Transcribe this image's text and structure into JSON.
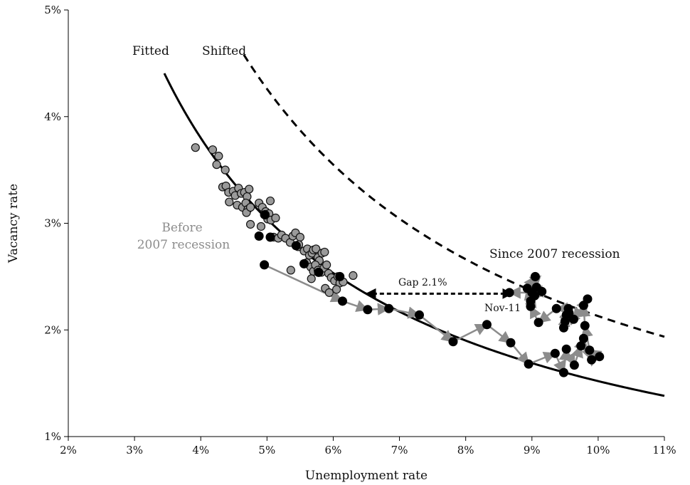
{
  "chart_data": {
    "type": "scatter",
    "xlabel": "Unemployment rate",
    "ylabel": "Vacancy rate",
    "xlim": [
      2,
      11
    ],
    "ylim": [
      1,
      5
    ],
    "x_ticks": [
      2,
      3,
      4,
      5,
      6,
      7,
      8,
      9,
      10,
      11
    ],
    "y_ticks": [
      1,
      2,
      3,
      4,
      5
    ],
    "x_tick_labels": [
      "2%",
      "3%",
      "4%",
      "5%",
      "6%",
      "7%",
      "8%",
      "9%",
      "10%",
      "11%"
    ],
    "y_tick_labels": [
      "1%",
      "2%",
      "3%",
      "4%",
      "5%"
    ],
    "grid": false,
    "colors": {
      "before": "#9a9a9a",
      "since": "#000000",
      "path": "#8c8c8c",
      "curve": "#000000"
    },
    "curves": {
      "fitted": {
        "label": "Fitted",
        "style": "solid",
        "k": 15.2,
        "x_range": [
          3.45,
          11
        ]
      },
      "shifted": {
        "label": "Shifted",
        "style": "dashed",
        "k": 21.3,
        "x_range": [
          4.65,
          11
        ]
      }
    },
    "annotations": {
      "before_line1": "Before",
      "before_line2": "2007 recession",
      "since": "Since 2007 recession",
      "gap": "Gap 2.1%",
      "nov": "Nov-11"
    },
    "gap_arrow": {
      "x_from": 8.7,
      "x_to": 6.5,
      "y": 2.34
    },
    "series": [
      {
        "name": "Before 2007 recession",
        "points": [
          [
            3.92,
            3.71
          ],
          [
            4.18,
            3.69
          ],
          [
            4.27,
            3.63
          ],
          [
            4.24,
            3.55
          ],
          [
            4.37,
            3.5
          ],
          [
            4.33,
            3.34
          ],
          [
            4.38,
            3.35
          ],
          [
            4.42,
            3.29
          ],
          [
            4.49,
            3.3
          ],
          [
            4.52,
            3.26
          ],
          [
            4.57,
            3.33
          ],
          [
            4.61,
            3.28
          ],
          [
            4.66,
            3.29
          ],
          [
            4.7,
            3.25
          ],
          [
            4.73,
            3.32
          ],
          [
            4.43,
            3.2
          ],
          [
            4.55,
            3.17
          ],
          [
            4.63,
            3.15
          ],
          [
            4.68,
            3.19
          ],
          [
            4.71,
            3.13
          ],
          [
            4.69,
            3.1
          ],
          [
            4.75,
            3.15
          ],
          [
            4.88,
            3.19
          ],
          [
            4.93,
            3.15
          ],
          [
            4.96,
            3.08
          ],
          [
            4.98,
            3.11
          ],
          [
            5.01,
            3.04
          ],
          [
            5.03,
            3.09
          ],
          [
            5.05,
            3.21
          ],
          [
            4.75,
            2.99
          ],
          [
            4.91,
            2.97
          ],
          [
            5.06,
            3.03
          ],
          [
            5.13,
            3.05
          ],
          [
            5.1,
            2.87
          ],
          [
            5.17,
            2.86
          ],
          [
            5.22,
            2.89
          ],
          [
            5.28,
            2.86
          ],
          [
            5.35,
            2.82
          ],
          [
            5.39,
            2.88
          ],
          [
            5.43,
            2.91
          ],
          [
            5.47,
            2.78
          ],
          [
            5.5,
            2.87
          ],
          [
            5.56,
            2.74
          ],
          [
            5.61,
            2.76
          ],
          [
            5.64,
            2.7
          ],
          [
            5.68,
            2.72
          ],
          [
            5.7,
            2.75
          ],
          [
            5.74,
            2.76
          ],
          [
            5.77,
            2.68
          ],
          [
            5.79,
            2.65
          ],
          [
            5.83,
            2.72
          ],
          [
            5.87,
            2.73
          ],
          [
            5.6,
            2.63
          ],
          [
            5.66,
            2.59
          ],
          [
            5.7,
            2.55
          ],
          [
            5.73,
            2.61
          ],
          [
            5.77,
            2.56
          ],
          [
            5.82,
            2.54
          ],
          [
            5.86,
            2.58
          ],
          [
            5.9,
            2.61
          ],
          [
            5.93,
            2.53
          ],
          [
            5.97,
            2.49
          ],
          [
            6.02,
            2.46
          ],
          [
            6.07,
            2.5
          ],
          [
            6.1,
            2.44
          ],
          [
            6.15,
            2.45
          ],
          [
            5.67,
            2.48
          ],
          [
            5.88,
            2.39
          ],
          [
            5.94,
            2.35
          ],
          [
            6.05,
            2.38
          ],
          [
            6.3,
            2.51
          ],
          [
            5.36,
            2.56
          ],
          [
            5.48,
            2.8
          ]
        ]
      },
      {
        "name": "Since 2007 recession",
        "points": [
          [
            4.97,
            3.08
          ],
          [
            4.88,
            2.88
          ],
          [
            5.05,
            2.87
          ],
          [
            5.44,
            2.79
          ],
          [
            5.56,
            2.62
          ],
          [
            5.78,
            2.54
          ],
          [
            6.1,
            2.5
          ],
          [
            4.96,
            2.61
          ],
          [
            6.14,
            2.27
          ],
          [
            6.52,
            2.19
          ],
          [
            6.84,
            2.2
          ],
          [
            7.3,
            2.14
          ],
          [
            7.81,
            1.89
          ],
          [
            8.32,
            2.05
          ],
          [
            8.68,
            1.88
          ],
          [
            8.95,
            1.68
          ],
          [
            9.35,
            1.78
          ],
          [
            9.48,
            1.6
          ],
          [
            9.52,
            1.82
          ],
          [
            9.64,
            1.67
          ],
          [
            9.74,
            1.85
          ],
          [
            9.78,
            1.92
          ],
          [
            9.9,
            1.72
          ],
          [
            10.02,
            1.75
          ],
          [
            9.87,
            1.81
          ],
          [
            9.8,
            2.04
          ],
          [
            9.78,
            2.23
          ],
          [
            9.84,
            2.29
          ],
          [
            9.63,
            2.1
          ],
          [
            9.56,
            2.16
          ],
          [
            9.5,
            2.08
          ],
          [
            9.48,
            2.02
          ],
          [
            9.52,
            2.14
          ],
          [
            9.55,
            2.2
          ],
          [
            9.37,
            2.2
          ],
          [
            9.1,
            2.07
          ],
          [
            8.98,
            2.22
          ],
          [
            9.04,
            2.32
          ],
          [
            8.98,
            2.27
          ],
          [
            8.93,
            2.39
          ],
          [
            9.05,
            2.5
          ],
          [
            9.07,
            2.4
          ],
          [
            9.15,
            2.36
          ],
          [
            9.0,
            2.35
          ],
          [
            8.66,
            2.35
          ]
        ]
      }
    ]
  }
}
